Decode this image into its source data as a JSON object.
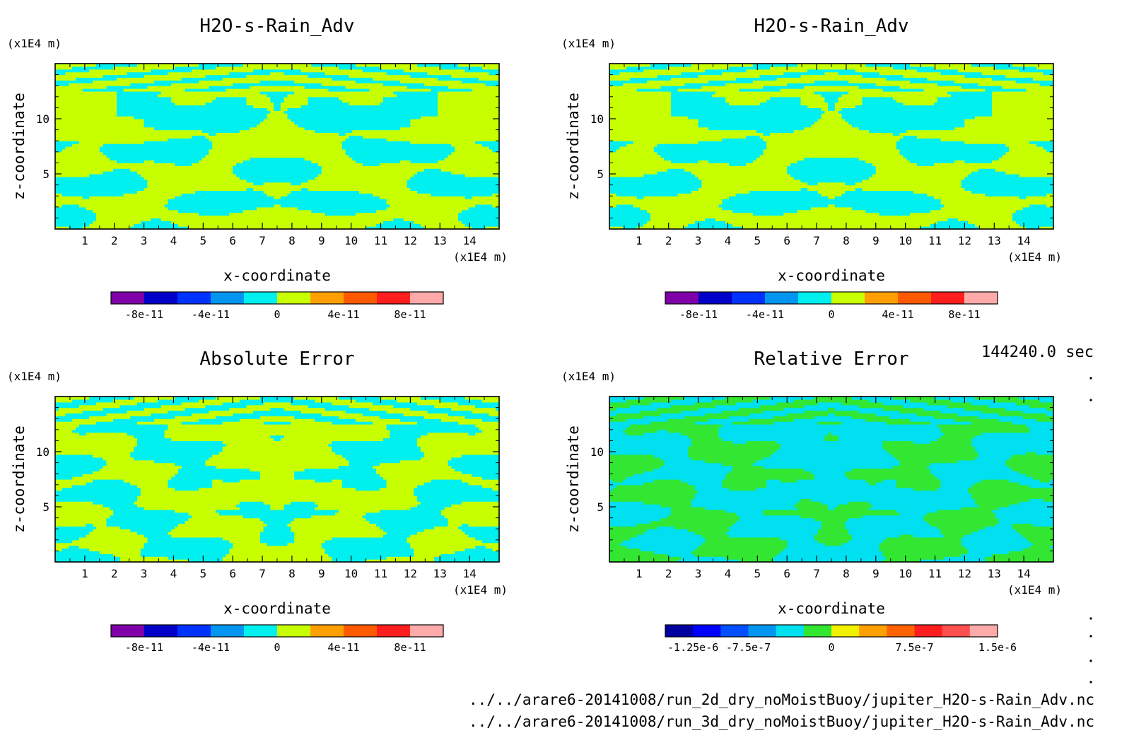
{
  "window": {
    "time_label": "144240.0 sec"
  },
  "footer": {
    "file_1": "../../arare6-20141008/run_2d_dry_noMoistBuoy/jupiter_H2O-s-Rain_Adv.nc",
    "file_2": "../../arare6-20141008/run_3d_dry_noMoistBuoy/jupiter_H2O-s-Rain_Adv.nc"
  },
  "chart_data": [
    {
      "type": "heatmap",
      "title": "H2O-s-Rain_Adv",
      "xlabel": "x-coordinate",
      "ylabel": "z-coordinate",
      "x_unit": "(x1E4 m)",
      "y_unit": "(x1E4 m)",
      "xlim": [
        0,
        15
      ],
      "ylim": [
        0,
        15
      ],
      "xticks": [
        "1",
        "2",
        "3",
        "4",
        "5",
        "6",
        "7",
        "8",
        "9",
        "10",
        "11",
        "12",
        "13",
        "14"
      ],
      "yticks": [
        "5",
        "10"
      ],
      "field": "abs",
      "legend": {
        "levels": [
          "-1e-10",
          "-8e-11",
          "-6e-11",
          "-4e-11",
          "-2e-11",
          "0",
          "2e-11",
          "4e-11",
          "6e-11",
          "8e-11",
          "1e-10"
        ],
        "labels": [
          "-8e-11",
          "-4e-11",
          "0",
          "4e-11",
          "8e-11"
        ],
        "colors": [
          "#7f00a8",
          "#0000c8",
          "#0032ff",
          "#0096f0",
          "#00f0f0",
          "#c8ff00",
          "#ffa000",
          "#ff5a00",
          "#ff1e1e",
          "#ffaaaa"
        ]
      },
      "dominant_colors": [
        "#00f0f0",
        "#c8ff00"
      ]
    },
    {
      "type": "heatmap",
      "title": "H2O-s-Rain_Adv",
      "xlabel": "x-coordinate",
      "ylabel": "z-coordinate",
      "x_unit": "(x1E4 m)",
      "y_unit": "(x1E4 m)",
      "xlim": [
        0,
        15
      ],
      "ylim": [
        0,
        15
      ],
      "xticks": [
        "1",
        "2",
        "3",
        "4",
        "5",
        "6",
        "7",
        "8",
        "9",
        "10",
        "11",
        "12",
        "13",
        "14"
      ],
      "yticks": [
        "5",
        "10"
      ],
      "field": "abs",
      "legend": {
        "levels": [
          "-1e-10",
          "-8e-11",
          "-6e-11",
          "-4e-11",
          "-2e-11",
          "0",
          "2e-11",
          "4e-11",
          "6e-11",
          "8e-11",
          "1e-10"
        ],
        "labels": [
          "-8e-11",
          "-4e-11",
          "0",
          "4e-11",
          "8e-11"
        ],
        "colors": [
          "#7f00a8",
          "#0000c8",
          "#0032ff",
          "#0096f0",
          "#00f0f0",
          "#c8ff00",
          "#ffa000",
          "#ff5a00",
          "#ff1e1e",
          "#ffaaaa"
        ]
      },
      "dominant_colors": [
        "#00f0f0",
        "#c8ff00"
      ]
    },
    {
      "type": "heatmap",
      "title": "Absolute Error",
      "xlabel": "x-coordinate",
      "ylabel": "z-coordinate",
      "x_unit": "(x1E4 m)",
      "y_unit": "(x1E4 m)",
      "xlim": [
        0,
        15
      ],
      "ylim": [
        0,
        15
      ],
      "xticks": [
        "1",
        "2",
        "3",
        "4",
        "5",
        "6",
        "7",
        "8",
        "9",
        "10",
        "11",
        "12",
        "13",
        "14"
      ],
      "yticks": [
        "5",
        "10"
      ],
      "field": "err",
      "legend": {
        "levels": [
          "-1e-10",
          "-8e-11",
          "-6e-11",
          "-4e-11",
          "-2e-11",
          "0",
          "2e-11",
          "4e-11",
          "6e-11",
          "8e-11",
          "1e-10"
        ],
        "labels": [
          "-8e-11",
          "-4e-11",
          "0",
          "4e-11",
          "8e-11"
        ],
        "colors": [
          "#7f00a8",
          "#0000c8",
          "#0032ff",
          "#0096f0",
          "#00f0f0",
          "#c8ff00",
          "#ffa000",
          "#ff5a00",
          "#ff1e1e",
          "#ffaaaa"
        ]
      },
      "dominant_colors": [
        "#00f0f0",
        "#c8ff00"
      ]
    },
    {
      "type": "heatmap",
      "title": "Relative Error",
      "xlabel": "x-coordinate",
      "ylabel": "z-coordinate",
      "x_unit": "(x1E4 m)",
      "y_unit": "(x1E4 m)",
      "xlim": [
        0,
        15
      ],
      "ylim": [
        0,
        15
      ],
      "xticks": [
        "1",
        "2",
        "3",
        "4",
        "5",
        "6",
        "7",
        "8",
        "9",
        "10",
        "11",
        "12",
        "13",
        "14"
      ],
      "yticks": [
        "5",
        "10"
      ],
      "field": "rel",
      "legend": {
        "levels": [
          "-1.5e-6",
          "-1.25e-6",
          "-1e-6",
          "-7.5e-7",
          "-5e-7",
          "-2.5e-7",
          "0",
          "2.5e-7",
          "5e-7",
          "7.5e-7",
          "1e-6",
          "1.25e-6",
          "1.5e-6"
        ],
        "labels": [
          "-1.25e-6",
          "-7.5e-7",
          "0",
          "7.5e-7",
          "1.5e-6"
        ],
        "label_levels": [
          1,
          3,
          6,
          9,
          12
        ],
        "colors": [
          "#0000a0",
          "#0000ff",
          "#0050ff",
          "#0096f0",
          "#00e0f0",
          "#32e632",
          "#f0f000",
          "#ffa000",
          "#ff6400",
          "#ff1e1e",
          "#ff5050",
          "#ffaaaa"
        ]
      },
      "dominant_colors": [
        "#00e0f0",
        "#32e632"
      ]
    }
  ]
}
